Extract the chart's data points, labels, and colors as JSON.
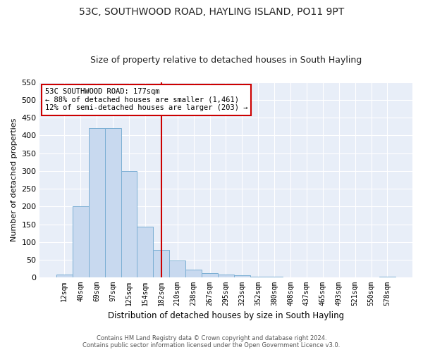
{
  "title": "53C, SOUTHWOOD ROAD, HAYLING ISLAND, PO11 9PT",
  "subtitle": "Size of property relative to detached houses in South Hayling",
  "xlabel": "Distribution of detached houses by size in South Hayling",
  "ylabel": "Number of detached properties",
  "bar_labels": [
    "12sqm",
    "40sqm",
    "69sqm",
    "97sqm",
    "125sqm",
    "154sqm",
    "182sqm",
    "210sqm",
    "238sqm",
    "267sqm",
    "295sqm",
    "323sqm",
    "352sqm",
    "380sqm",
    "408sqm",
    "437sqm",
    "465sqm",
    "493sqm",
    "521sqm",
    "550sqm",
    "578sqm"
  ],
  "bar_values": [
    8,
    200,
    420,
    420,
    300,
    143,
    77,
    48,
    23,
    12,
    8,
    6,
    3,
    2,
    1,
    0,
    0,
    0,
    0,
    0,
    3
  ],
  "bar_color": "#c8d9ef",
  "bar_edge_color": "#7bafd4",
  "vline_color": "#cc0000",
  "annotation_text": "53C SOUTHWOOD ROAD: 177sqm\n← 88% of detached houses are smaller (1,461)\n12% of semi-detached houses are larger (203) →",
  "annotation_box_color": "#ffffff",
  "annotation_box_edge": "#cc0000",
  "ylim": [
    0,
    550
  ],
  "yticks": [
    0,
    50,
    100,
    150,
    200,
    250,
    300,
    350,
    400,
    450,
    500,
    550
  ],
  "footer": "Contains HM Land Registry data © Crown copyright and database right 2024.\nContains public sector information licensed under the Open Government Licence v3.0.",
  "plot_bg_color": "#e8eef8",
  "grid_color": "#ffffff",
  "title_fontsize": 10,
  "subtitle_fontsize": 9
}
